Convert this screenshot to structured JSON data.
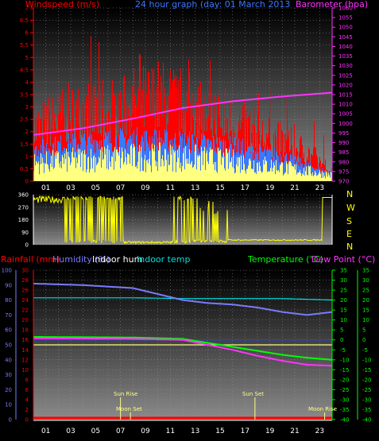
{
  "header": {
    "left_label": "Windspeed (m/s)",
    "center_label": "24 hour graph (day: 01 March 2013",
    "right_label": "Barometer (hpa)"
  },
  "wind_dir_labels": [
    "N",
    "W",
    "S",
    "E",
    "N"
  ],
  "bottom_header": {
    "rain_label": "Rainfall (mm)",
    "humidity_label": "Humidity (%)",
    "indoor_hum_label": "Indoor hum",
    "indoor_temp_label": "Indoor temp",
    "temp_label": "Temperature (°C)",
    "dew_label": "Dew Point (°C)"
  },
  "events": {
    "sun_rise": "Sun Rise",
    "sun_set": "Sun Set",
    "moon_set": "Moon Set",
    "moon_rise": "Moon Rise"
  },
  "colors": {
    "wind": "#ff0000",
    "gust": "#ffff80",
    "avg": "#3a78ff",
    "baro": "#ff33ff",
    "winddir": "#ffff00",
    "rain": "#ff0000",
    "humidity": "#7b7bff",
    "indoor_hum": "#ffffff",
    "indoor_temp": "#00e0e0",
    "temp": "#00ff00",
    "dew": "#ff33ff",
    "yellow": "#ffff00"
  },
  "chart_data": [
    {
      "type": "area",
      "x_ticks": [
        "01",
        "03",
        "05",
        "07",
        "09",
        "11",
        "13",
        "15",
        "17",
        "19",
        "21",
        "23"
      ],
      "y_left_ticks": [
        "0",
        "0.5",
        "1",
        "1.5",
        "2",
        "2.5",
        "3",
        "3.5",
        "4",
        "4.5",
        "5",
        "5.5",
        "6",
        "6.5",
        "7"
      ],
      "y_right_ticks": [
        "970",
        "975",
        "980",
        "985",
        "990",
        "995",
        "1000",
        "1005",
        "1010",
        "1015",
        "1020",
        "1025",
        "1030",
        "1035",
        "1040",
        "1045",
        "1050",
        "1055",
        "1060"
      ],
      "y_left_range": [
        0,
        7
      ],
      "y_right_range": [
        970,
        1060
      ],
      "barometer": {
        "x": [
          0,
          4,
          8,
          12,
          16,
          20,
          24
        ],
        "y": [
          994,
          997.5,
          1002.5,
          1008,
          1011.5,
          1014,
          1016
        ]
      },
      "windspeed_max": {
        "x": [
          0,
          2,
          4,
          6,
          8,
          10,
          12,
          14,
          16,
          18,
          20,
          22,
          23,
          24
        ],
        "y": [
          2.6,
          3.2,
          3.5,
          3.6,
          3.9,
          4.2,
          3.9,
          3.5,
          3.0,
          2.4,
          2.0,
          1.5,
          1.0,
          0.5
        ]
      },
      "gust_avg": {
        "x": [
          0,
          4,
          8,
          12,
          16,
          20,
          24
        ],
        "y": [
          0.9,
          1.1,
          1.2,
          1.2,
          1.0,
          0.7,
          0.3
        ]
      },
      "wind_avg": {
        "x": [
          0,
          4,
          8,
          12,
          16,
          20,
          24
        ],
        "y": [
          1.3,
          1.6,
          1.7,
          1.6,
          1.4,
          1.0,
          0.3
        ]
      }
    },
    {
      "type": "line",
      "y_ticks": [
        "0",
        "90",
        "180",
        "270",
        "360"
      ],
      "y_range": [
        0,
        360
      ],
      "wind_direction": {
        "x": [
          0,
          1,
          2,
          2.5,
          3,
          4,
          5,
          6,
          7,
          11,
          12,
          13,
          14,
          15,
          16,
          17,
          18,
          19,
          20,
          21,
          22,
          23,
          23.3,
          24
        ],
        "y": [
          320,
          330,
          320,
          40,
          300,
          20,
          310,
          20,
          10,
          20,
          320,
          20,
          310,
          30,
          40,
          40,
          30,
          30,
          30,
          30,
          30,
          30,
          340,
          340
        ]
      }
    },
    {
      "type": "line",
      "x_ticks": [
        "01",
        "03",
        "05",
        "07",
        "09",
        "11",
        "13",
        "15",
        "17",
        "19",
        "21",
        "23"
      ],
      "y_left_outer_ticks": [
        "0",
        "10",
        "20",
        "30",
        "40",
        "50",
        "60",
        "70",
        "80",
        "90",
        "100"
      ],
      "y_left_inner_ticks": [
        "0",
        "2",
        "4",
        "6",
        "8",
        "10",
        "12",
        "14",
        "16",
        "18",
        "20",
        "22",
        "24",
        "26",
        "28",
        "30"
      ],
      "y_right_ticks": [
        "-40",
        "-35",
        "-30",
        "-25",
        "-20",
        "-15",
        "-10",
        "-5",
        "0",
        "5",
        "10",
        "15",
        "20",
        "25",
        "30",
        "35"
      ],
      "humidity": {
        "x": [
          0,
          4,
          8,
          10,
          12,
          14,
          16,
          18,
          20,
          22,
          24
        ],
        "y": [
          91,
          90,
          88,
          84,
          80,
          78,
          77,
          75,
          72,
          70,
          72
        ]
      },
      "indoor_temp": {
        "x": [
          0,
          8,
          12,
          16,
          20,
          24
        ],
        "y": [
          81.5,
          81.5,
          81,
          81,
          81,
          80
        ]
      },
      "indoor_humidity": {
        "x": [
          0,
          24
        ],
        "y": [
          15,
          15
        ]
      },
      "temperature": {
        "x": [
          0,
          8,
          12,
          14,
          16,
          18,
          20,
          22,
          24
        ],
        "y": [
          1.5,
          1.2,
          0.5,
          -1.5,
          -3.5,
          -5.5,
          -7.5,
          -9,
          -10
        ]
      },
      "dew_point": {
        "x": [
          0,
          8,
          12,
          14,
          16,
          18,
          20,
          22,
          24
        ],
        "y": [
          0.8,
          0.5,
          0,
          -2.5,
          -5,
          -8,
          -10.5,
          -12.5,
          -13
        ]
      },
      "rainfall": {
        "x": [
          0,
          24
        ],
        "y": [
          0,
          0
        ]
      },
      "yellow_hline": {
        "x": [
          0,
          24
        ],
        "y": [
          0,
          0
        ]
      },
      "events_x": {
        "sun_rise": 7.0,
        "moon_set": 7.8,
        "sun_set": 17.8,
        "moon_rise": 23.4
      }
    }
  ]
}
